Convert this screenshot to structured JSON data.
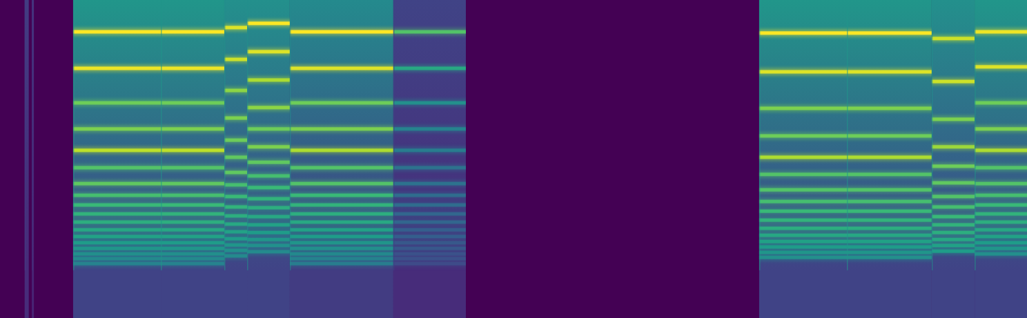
{
  "chart_data": {
    "type": "spectrogram",
    "tick_labels": false,
    "xlim": [
      0,
      5
    ],
    "ylim": [
      128,
      0
    ],
    "zlim": [
      -80,
      0
    ],
    "floor": -80,
    "notes": [
      {
        "start": 0.12,
        "end": 0.14,
        "noise": [
          -66,
          -70
        ],
        "harmonics": [],
        "levels": []
      },
      {
        "start": 0.155,
        "end": 0.165,
        "noise": [
          -68,
          -72
        ],
        "harmonics": [],
        "levels": []
      },
      {
        "start": 0.356,
        "end": 0.783,
        "noise": [
          -38,
          -64
        ],
        "harmonics": [
          12.8,
          27.5,
          41.4,
          51.9,
          60.5,
          67.5,
          73.9,
          78.6,
          82.5,
          86.1,
          89.4,
          92.5,
          95.2,
          97.7,
          100.0,
          102.2,
          104.1,
          106.1
        ],
        "levels": [
          0,
          -2,
          -18,
          -16,
          -8,
          -22,
          -20,
          -24,
          -26,
          -28,
          -30,
          -32,
          -34,
          -36,
          -38,
          -40,
          -42,
          -44
        ]
      },
      {
        "start": 0.783,
        "end": 1.092,
        "noise": [
          -38,
          -64
        ],
        "harmonics": [
          12.8,
          27.5,
          41.4,
          51.9,
          60.5,
          67.5,
          73.9,
          78.6,
          82.5,
          86.1,
          89.4,
          92.5,
          95.2,
          97.7,
          100.0,
          102.2,
          104.1,
          106.1
        ],
        "levels": [
          0,
          -2,
          -18,
          -16,
          -8,
          -22,
          -20,
          -24,
          -26,
          -28,
          -30,
          -32,
          -34,
          -36,
          -38,
          -40,
          -42,
          -44
        ]
      },
      {
        "start": 1.092,
        "end": 1.203,
        "noise": [
          -40,
          -64
        ],
        "harmonics": [
          11.1,
          23.9,
          36.4,
          47.5,
          56.4,
          63.3,
          69.4,
          74.4,
          79.1,
          83.3,
          86.9,
          90.2,
          93.3,
          96.1,
          98.6,
          100.8,
          103.0
        ],
        "levels": [
          -4,
          -6,
          -14,
          -16,
          -18,
          -20,
          -20,
          -24,
          -26,
          -28,
          -30,
          -32,
          -34,
          -36,
          -38,
          -40,
          -42
        ]
      },
      {
        "start": 1.203,
        "end": 1.411,
        "noise": [
          -40,
          -64
        ],
        "harmonics": [
          9.4,
          20.8,
          32.2,
          43.3,
          51.9,
          59.1,
          65.3,
          70.8,
          75.5,
          80.0,
          83.6,
          87.2,
          90.5,
          93.6,
          96.4,
          98.8,
          101.3
        ],
        "levels": [
          0,
          -4,
          -10,
          -14,
          -18,
          -16,
          -20,
          -24,
          -26,
          -28,
          -30,
          -32,
          -34,
          -36,
          -38,
          -40,
          -42
        ]
      },
      {
        "start": 1.411,
        "end": 1.915,
        "noise": [
          -42,
          -66
        ],
        "harmonics": [
          12.8,
          27.5,
          41.4,
          51.9,
          60.5,
          67.5,
          73.9,
          78.6,
          82.5,
          86.1,
          89.4,
          92.5,
          95.2,
          97.7,
          100.0,
          102.2,
          104.1,
          106.1
        ],
        "levels": [
          0,
          -4,
          -18,
          -16,
          -10,
          -22,
          -22,
          -26,
          -28,
          -30,
          -32,
          -34,
          -36,
          -38,
          -40,
          -42,
          -44,
          -46
        ]
      },
      {
        "start": 1.915,
        "end": 2.268,
        "noise": [
          -64,
          -70
        ],
        "harmonics": [
          12.8,
          27.5,
          41.4,
          51.9,
          60.5,
          67.5,
          73.9,
          78.6,
          82.5,
          86.1,
          89.4,
          92.5,
          95.2,
          97.7,
          100.0,
          102.2,
          104.1,
          106.1
        ],
        "levels": [
          -22,
          -32,
          -40,
          -44,
          -46,
          -50,
          -50,
          -52,
          -52,
          -54,
          -54,
          -56,
          -56,
          -58,
          -58,
          -60,
          -60,
          -62
        ]
      },
      {
        "start": 3.696,
        "end": 4.123,
        "noise": [
          -38,
          -64
        ],
        "harmonics": [
          13.3,
          28.9,
          43.6,
          54.7,
          63.3,
          70.2,
          76.4,
          81.1,
          85.0,
          88.6,
          91.9,
          94.7,
          97.2,
          99.4,
          101.6,
          103.6
        ],
        "levels": [
          0,
          -4,
          -16,
          -18,
          -10,
          -22,
          -22,
          -24,
          -26,
          -28,
          -30,
          -32,
          -34,
          -36,
          -38,
          -40
        ]
      },
      {
        "start": 4.123,
        "end": 4.536,
        "noise": [
          -38,
          -64
        ],
        "harmonics": [
          13.3,
          28.9,
          43.6,
          54.7,
          63.3,
          70.2,
          76.4,
          81.1,
          85.0,
          88.6,
          91.9,
          94.7,
          97.2,
          99.4,
          101.6,
          103.6
        ],
        "levels": [
          0,
          -4,
          -16,
          -18,
          -10,
          -22,
          -22,
          -24,
          -26,
          -28,
          -30,
          -32,
          -34,
          -36,
          -38,
          -40
        ]
      },
      {
        "start": 4.536,
        "end": 4.745,
        "noise": [
          -40,
          -64
        ],
        "harmonics": [
          15.5,
          32.8,
          48.0,
          59.1,
          66.9,
          73.6,
          79.1,
          83.3,
          87.2,
          90.5,
          93.6,
          96.4,
          98.8,
          101.1
        ],
        "levels": [
          -6,
          -6,
          -16,
          -12,
          -18,
          -20,
          -22,
          -24,
          -26,
          -28,
          -30,
          -32,
          -34,
          -36
        ]
      },
      {
        "start": 4.745,
        "end": 5,
        "noise": [
          -38,
          -64
        ],
        "harmonics": [
          12.8,
          26.9,
          41.4,
          51.9,
          60.5,
          67.5,
          73.9,
          78.6,
          82.5,
          86.1,
          89.4,
          92.5,
          95.2,
          97.7,
          100.0,
          102.2
        ],
        "levels": [
          -2,
          -4,
          -18,
          -16,
          -10,
          -22,
          -22,
          -24,
          -26,
          -28,
          -30,
          -32,
          -34,
          -36,
          -38,
          -40
        ]
      }
    ]
  }
}
